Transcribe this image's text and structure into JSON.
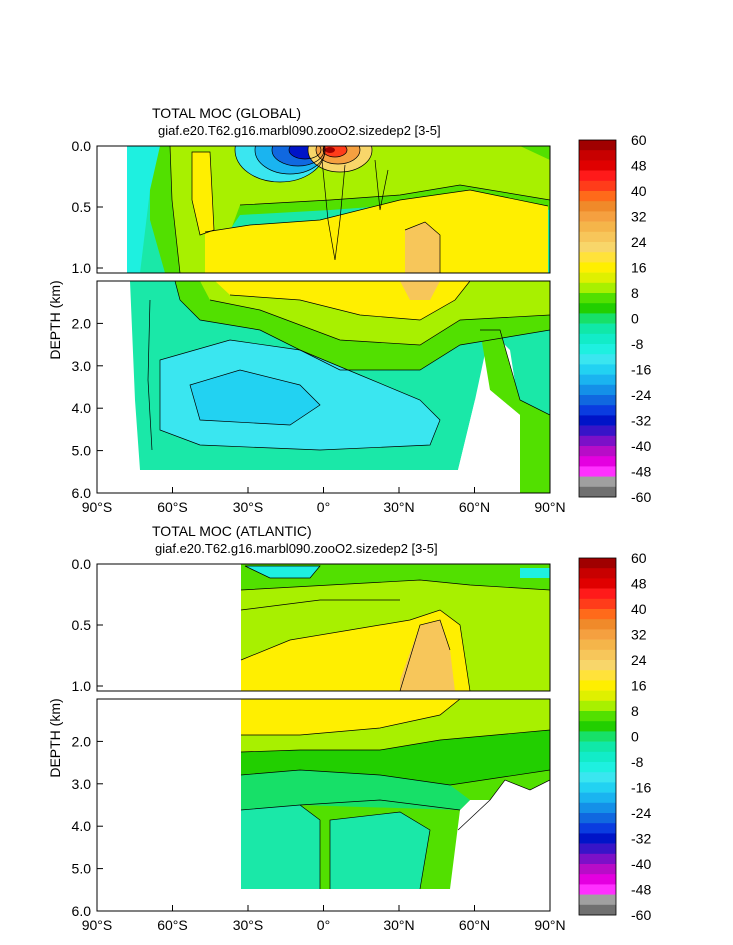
{
  "chart_data": [
    {
      "type": "heatmap",
      "title": "TOTAL MOC (GLOBAL)",
      "subtitle": "giaf.e20.T62.g16.marbl090.zooO2.sizedep2 [3-5]",
      "ylabel": "DEPTH (km)",
      "x_ticks": [
        "90°S",
        "60°S",
        "30°S",
        "0°",
        "30°N",
        "60°N",
        "90°N"
      ],
      "y_ticks_upper": [
        "0.0",
        "0.5",
        "1.0"
      ],
      "y_ticks_lower": [
        "2.0",
        "3.0",
        "4.0",
        "5.0",
        "6.0"
      ],
      "xlim": [
        -90,
        90
      ],
      "ylim_km": [
        0,
        6
      ],
      "features": [
        {
          "name": "deep-southern-cell",
          "lat": [
            -55,
            5
          ],
          "depth": [
            3.0,
            4.6
          ],
          "value": -10
        },
        {
          "name": "surface-southern-gyre",
          "lat": [
            -25,
            -5
          ],
          "depth": [
            0.0,
            0.35
          ],
          "value": -40
        },
        {
          "name": "surface-northern-gyre",
          "lat": [
            3,
            18
          ],
          "depth": [
            0.0,
            0.3
          ],
          "value": 40
        },
        {
          "name": "atlantic-overturning-core",
          "lat": [
            30,
            55
          ],
          "depth": [
            0.4,
            1.3
          ],
          "value": 18
        }
      ]
    },
    {
      "type": "heatmap",
      "title": "TOTAL MOC (ATLANTIC)",
      "subtitle": "giaf.e20.T62.g16.marbl090.zooO2.sizedep2 [3-5]",
      "ylabel": "DEPTH (km)",
      "x_ticks": [
        "90°S",
        "60°S",
        "30°S",
        "0°",
        "30°N",
        "60°N",
        "90°N"
      ],
      "y_ticks_upper": [
        "0.0",
        "0.5",
        "1.0"
      ],
      "y_ticks_lower": [
        "2.0",
        "3.0",
        "4.0",
        "5.0",
        "6.0"
      ],
      "xlim": [
        -90,
        90
      ],
      "ylim_km": [
        0,
        6
      ],
      "features": [
        {
          "name": "upper-cell",
          "lat": [
            -34,
            58
          ],
          "depth": [
            0.3,
            1.8
          ],
          "value": 16
        },
        {
          "name": "upper-cell-core",
          "lat": [
            35,
            55
          ],
          "depth": [
            0.6,
            1.2
          ],
          "value": 20
        },
        {
          "name": "deep-cell",
          "lat": [
            -34,
            40
          ],
          "depth": [
            4.0,
            5.3
          ],
          "value": -4
        }
      ]
    }
  ],
  "colorbar": {
    "labels": [
      "60",
      "48",
      "40",
      "32",
      "24",
      "16",
      "8",
      "0",
      "-8",
      "-16",
      "-24",
      "-32",
      "-40",
      "-48",
      "-60"
    ],
    "colors": [
      "#a00000",
      "#c80000",
      "#e00000",
      "#ff1a1a",
      "#ff3c1a",
      "#ff6a1a",
      "#f08a2a",
      "#f5a040",
      "#f5b54a",
      "#f7c65a",
      "#f8d66a",
      "#ffe23a",
      "#ffef00",
      "#dff000",
      "#a8f000",
      "#52e000",
      "#22cf00",
      "#17e068",
      "#10e8a8",
      "#12ecc8",
      "#1ef0e0",
      "#3ae6f0",
      "#22d2f2",
      "#1ab4f0",
      "#1490e8",
      "#1068e0",
      "#0a3ce0",
      "#0014c8",
      "#3814c8",
      "#7c10c8",
      "#b80cc8",
      "#e400e0",
      "#ff30ff",
      "#a0a0a0",
      "#707070"
    ]
  }
}
